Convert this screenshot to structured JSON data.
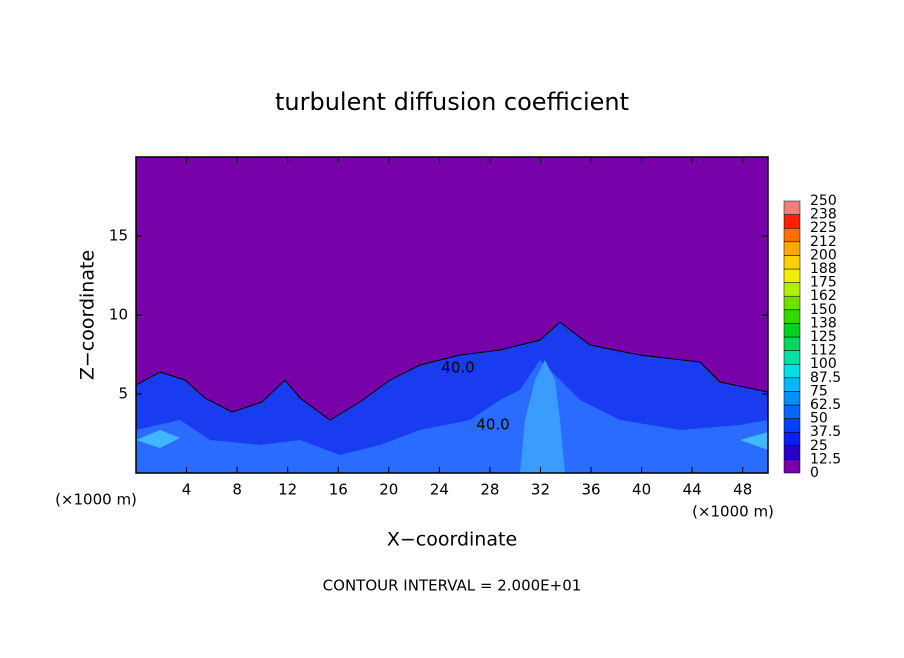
{
  "chart_data": {
    "type": "contour",
    "title": "turbulent diffusion coefficient",
    "x_label": "X−coordinate",
    "y_label": "Z−coordinate",
    "x_unit_label": "(×1000 m)",
    "footer": "CONTOUR INTERVAL = 2.000E+01",
    "xlim": [
      0,
      50
    ],
    "xticks": [
      4,
      8,
      12,
      16,
      20,
      24,
      28,
      32,
      36,
      40,
      44,
      48
    ],
    "ylim": [
      0,
      20
    ],
    "yticks": [
      5,
      10,
      15
    ],
    "annotations": [
      "40.0",
      "40.0"
    ],
    "colorbar": {
      "levels": [
        0,
        12.5,
        25,
        37.5,
        50,
        62.5,
        75,
        87.5,
        100,
        112,
        125,
        138,
        150,
        162,
        175,
        188,
        200,
        212,
        225,
        238,
        250
      ],
      "colors": [
        "#7800a8",
        "#2a00c8",
        "#0a20f0",
        "#0040ff",
        "#0068ff",
        "#0090ff",
        "#00b8ff",
        "#00e0e0",
        "#00e0a0",
        "#00d860",
        "#00d020",
        "#30d800",
        "#70e000",
        "#b0f000",
        "#f0f000",
        "#ffd000",
        "#ffa800",
        "#ff7000",
        "#ff2000",
        "#f08080"
      ]
    }
  }
}
